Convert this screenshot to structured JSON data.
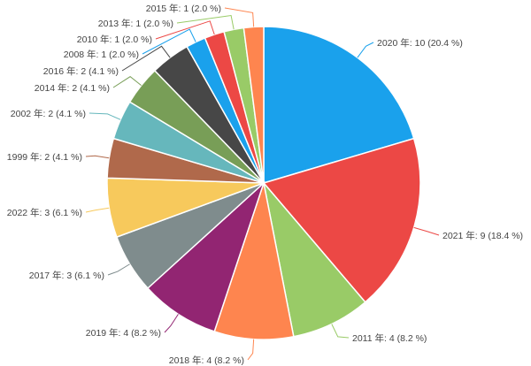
{
  "chart_data": {
    "type": "pie",
    "label_format": "{name} 年: {value} ({percent} %)",
    "slices": [
      {
        "name": "2020",
        "value": 10,
        "percent": "20.4",
        "color": "#1aa1ec"
      },
      {
        "name": "2021",
        "value": 9,
        "percent": "18.4",
        "color": "#ec4845"
      },
      {
        "name": "2011",
        "value": 4,
        "percent": "8.2",
        "color": "#99cb67"
      },
      {
        "name": "2018",
        "value": 4,
        "percent": "8.2",
        "color": "#fe854f"
      },
      {
        "name": "2019",
        "value": 4,
        "percent": "8.2",
        "color": "#922572"
      },
      {
        "name": "2017",
        "value": 3,
        "percent": "6.1",
        "color": "#7f8c8d"
      },
      {
        "name": "2022",
        "value": 3,
        "percent": "6.1",
        "color": "#f7c95c"
      },
      {
        "name": "1999",
        "value": 2,
        "percent": "4.1",
        "color": "#b0694b"
      },
      {
        "name": "2002",
        "value": 2,
        "percent": "4.1",
        "color": "#66b7bc"
      },
      {
        "name": "2014",
        "value": 2,
        "percent": "4.1",
        "color": "#789e57"
      },
      {
        "name": "2016",
        "value": 2,
        "percent": "4.1",
        "color": "#474747"
      },
      {
        "name": "2008",
        "value": 1,
        "percent": "2.0",
        "color": "#1aa1ec"
      },
      {
        "name": "2010",
        "value": 1,
        "percent": "2.0",
        "color": "#ec4845"
      },
      {
        "name": "2013",
        "value": 1,
        "percent": "2.0",
        "color": "#99cb67"
      },
      {
        "name": "2015",
        "value": 1,
        "percent": "2.0",
        "color": "#fe854f"
      }
    ]
  }
}
